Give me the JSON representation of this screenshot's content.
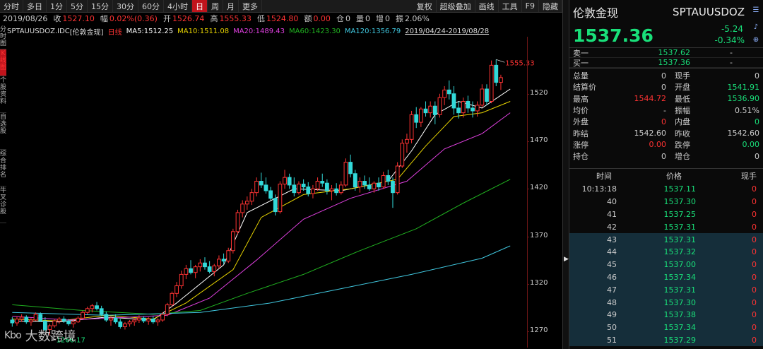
{
  "toolbar": {
    "periods": [
      "分时",
      "多日",
      "1分",
      "5分",
      "15分",
      "30分",
      "60分",
      "4小时",
      "日",
      "周",
      "月",
      "更多"
    ],
    "active_period": "日",
    "tools": [
      "复权",
      "超级叠加",
      "画线",
      "工具",
      "F9",
      "隐藏"
    ]
  },
  "info": {
    "date": "2019/08/26",
    "close_label": "收",
    "close_value": "1527.10",
    "amp_label": "幅",
    "amp_value": "0.02%(0.36)",
    "open_label": "开",
    "open_value": "1526.74",
    "high_label": "高",
    "high_value": "1555.33",
    "low_label": "低",
    "low_value": "1524.80",
    "amount_label": "额",
    "amount_value": "0.00",
    "position_label": "仓",
    "position_value": "0",
    "volume_label": "量",
    "volume_value": "0",
    "dpos_label": "增",
    "dpos_value": "0",
    "swing_label": "振",
    "swing_value": "2.06%"
  },
  "side_tabs": [
    {
      "text": "分时图",
      "red": false
    },
    {
      "text": "K线图",
      "red": true
    },
    {
      "text": "个股资料",
      "red": false
    },
    {
      "text": "自选股",
      "red": false
    },
    {
      "text": "综合排名",
      "red": false
    },
    {
      "text": "牛叉诊股",
      "red": false
    }
  ],
  "legend": {
    "symbol": "SPTAUUSDOZ.IDC",
    "name": "[伦敦金现]",
    "period": "日线",
    "ma5": "MA5:1512.25",
    "ma10": "MA10:1511.08",
    "ma20": "MA20:1489.43",
    "ma60": "MA60:1423.30",
    "ma120": "MA120:1356.79",
    "range": "2019/04/24-2019/08/28"
  },
  "colors": {
    "up": "#ff3333",
    "down": "#32d9d9",
    "ma5": "#ffffff",
    "ma10": "#e8d400",
    "ma20": "#e040e0",
    "ma60": "#20b020",
    "ma120": "#40c8e0",
    "price": "#19e07a"
  },
  "chart_data": {
    "type": "candlestick",
    "y_ticks": [
      1270,
      1320,
      1370,
      1420,
      1470,
      1520
    ],
    "ylim": [
      1253,
      1580
    ],
    "annotations": {
      "max_label": "1555.33",
      "min_label": "1266.17"
    },
    "candles": [
      [
        1282,
        1285,
        1275,
        1279
      ],
      [
        1279,
        1286,
        1276,
        1283
      ],
      [
        1283,
        1288,
        1280,
        1285
      ],
      [
        1285,
        1287,
        1278,
        1280
      ],
      [
        1280,
        1284,
        1276,
        1282
      ],
      [
        1282,
        1290,
        1281,
        1288
      ],
      [
        1288,
        1290,
        1280,
        1281
      ],
      [
        1281,
        1285,
        1270,
        1272
      ],
      [
        1272,
        1278,
        1266,
        1276
      ],
      [
        1276,
        1283,
        1274,
        1281
      ],
      [
        1281,
        1285,
        1278,
        1283
      ],
      [
        1283,
        1286,
        1279,
        1281
      ],
      [
        1281,
        1283,
        1276,
        1278
      ],
      [
        1278,
        1282,
        1274,
        1280
      ],
      [
        1280,
        1286,
        1279,
        1284
      ],
      [
        1284,
        1292,
        1283,
        1290
      ],
      [
        1290,
        1296,
        1288,
        1294
      ],
      [
        1294,
        1299,
        1290,
        1297
      ],
      [
        1297,
        1301,
        1292,
        1294
      ],
      [
        1294,
        1297,
        1286,
        1288
      ],
      [
        1288,
        1291,
        1280,
        1282
      ],
      [
        1282,
        1286,
        1276,
        1284
      ],
      [
        1284,
        1288,
        1278,
        1280
      ],
      [
        1280,
        1283,
        1273,
        1275
      ],
      [
        1275,
        1280,
        1272,
        1278
      ],
      [
        1278,
        1282,
        1275,
        1280
      ],
      [
        1280,
        1284,
        1276,
        1282
      ],
      [
        1282,
        1287,
        1279,
        1284
      ],
      [
        1284,
        1286,
        1279,
        1281
      ],
      [
        1281,
        1285,
        1277,
        1283
      ],
      [
        1283,
        1286,
        1278,
        1280
      ],
      [
        1280,
        1284,
        1276,
        1282
      ],
      [
        1282,
        1290,
        1280,
        1288
      ],
      [
        1288,
        1300,
        1286,
        1298
      ],
      [
        1298,
        1312,
        1296,
        1310
      ],
      [
        1310,
        1322,
        1306,
        1318
      ],
      [
        1318,
        1334,
        1315,
        1330
      ],
      [
        1330,
        1340,
        1325,
        1336
      ],
      [
        1336,
        1345,
        1330,
        1332
      ],
      [
        1332,
        1340,
        1326,
        1338
      ],
      [
        1338,
        1346,
        1333,
        1342
      ],
      [
        1342,
        1348,
        1335,
        1338
      ],
      [
        1338,
        1344,
        1331,
        1333
      ],
      [
        1333,
        1341,
        1328,
        1339
      ],
      [
        1339,
        1350,
        1336,
        1346
      ],
      [
        1346,
        1352,
        1341,
        1344
      ],
      [
        1344,
        1358,
        1342,
        1355
      ],
      [
        1355,
        1378,
        1352,
        1375
      ],
      [
        1375,
        1398,
        1372,
        1395
      ],
      [
        1395,
        1408,
        1390,
        1404
      ],
      [
        1404,
        1412,
        1398,
        1407
      ],
      [
        1407,
        1420,
        1403,
        1416
      ],
      [
        1416,
        1432,
        1412,
        1428
      ],
      [
        1428,
        1437,
        1421,
        1424
      ],
      [
        1424,
        1432,
        1415,
        1418
      ],
      [
        1418,
        1422,
        1408,
        1410
      ],
      [
        1410,
        1414,
        1392,
        1396
      ],
      [
        1396,
        1428,
        1394,
        1425
      ],
      [
        1425,
        1440,
        1420,
        1432
      ],
      [
        1432,
        1436,
        1420,
        1424
      ],
      [
        1424,
        1432,
        1412,
        1416
      ],
      [
        1416,
        1428,
        1414,
        1425
      ],
      [
        1425,
        1430,
        1418,
        1422
      ],
      [
        1422,
        1427,
        1412,
        1415
      ],
      [
        1415,
        1424,
        1410,
        1420
      ],
      [
        1420,
        1432,
        1418,
        1428
      ],
      [
        1428,
        1436,
        1422,
        1426
      ],
      [
        1426,
        1430,
        1414,
        1418
      ],
      [
        1418,
        1424,
        1408,
        1420
      ],
      [
        1420,
        1426,
        1413,
        1416
      ],
      [
        1416,
        1428,
        1414,
        1424
      ],
      [
        1424,
        1452,
        1422,
        1448
      ],
      [
        1448,
        1456,
        1432,
        1436
      ],
      [
        1436,
        1440,
        1418,
        1422
      ],
      [
        1422,
        1432,
        1416,
        1428
      ],
      [
        1428,
        1434,
        1420,
        1424
      ],
      [
        1424,
        1432,
        1418,
        1420
      ],
      [
        1420,
        1428,
        1416,
        1426
      ],
      [
        1426,
        1432,
        1418,
        1422
      ],
      [
        1422,
        1438,
        1420,
        1434
      ],
      [
        1434,
        1440,
        1424,
        1428
      ],
      [
        1428,
        1432,
        1400,
        1416
      ],
      [
        1416,
        1448,
        1414,
        1444
      ],
      [
        1444,
        1472,
        1442,
        1468
      ],
      [
        1468,
        1478,
        1458,
        1472
      ],
      [
        1472,
        1502,
        1468,
        1498
      ],
      [
        1498,
        1506,
        1484,
        1490
      ],
      [
        1490,
        1506,
        1485,
        1504
      ],
      [
        1504,
        1512,
        1496,
        1500
      ],
      [
        1500,
        1512,
        1495,
        1507
      ],
      [
        1507,
        1512,
        1488,
        1498
      ],
      [
        1498,
        1520,
        1495,
        1516
      ],
      [
        1516,
        1528,
        1508,
        1524
      ],
      [
        1524,
        1534,
        1514,
        1520
      ],
      [
        1520,
        1528,
        1498,
        1505
      ],
      [
        1505,
        1512,
        1494,
        1500
      ],
      [
        1500,
        1516,
        1495,
        1512
      ],
      [
        1512,
        1518,
        1500,
        1505
      ],
      [
        1505,
        1512,
        1495,
        1502
      ],
      [
        1502,
        1512,
        1496,
        1508
      ],
      [
        1508,
        1530,
        1506,
        1525
      ],
      [
        1525,
        1530,
        1508,
        1512
      ],
      [
        1512,
        1555,
        1510,
        1550
      ],
      [
        1550,
        1556,
        1528,
        1532
      ],
      [
        1532,
        1540,
        1524,
        1537
      ]
    ],
    "ma_series": [
      {
        "name": "MA5",
        "values": [
          [
            0,
            1281
          ],
          [
            10,
            1280
          ],
          [
            20,
            1285
          ],
          [
            30,
            1282
          ],
          [
            35,
            1300
          ],
          [
            45,
            1340
          ],
          [
            50,
            1395
          ],
          [
            60,
            1420
          ],
          [
            70,
            1418
          ],
          [
            80,
            1428
          ],
          [
            85,
            1460
          ],
          [
            90,
            1498
          ],
          [
            95,
            1512
          ],
          [
            100,
            1505
          ],
          [
            106,
            1525
          ]
        ]
      },
      {
        "name": "MA10",
        "values": [
          [
            0,
            1283
          ],
          [
            10,
            1281
          ],
          [
            20,
            1287
          ],
          [
            30,
            1283
          ],
          [
            37,
            1300
          ],
          [
            47,
            1335
          ],
          [
            53,
            1390
          ],
          [
            62,
            1414
          ],
          [
            72,
            1420
          ],
          [
            82,
            1430
          ],
          [
            88,
            1465
          ],
          [
            94,
            1496
          ],
          [
            100,
            1500
          ],
          [
            106,
            1512
          ]
        ]
      },
      {
        "name": "MA20",
        "values": [
          [
            0,
            1286
          ],
          [
            12,
            1282
          ],
          [
            25,
            1285
          ],
          [
            33,
            1287
          ],
          [
            42,
            1305
          ],
          [
            52,
            1345
          ],
          [
            62,
            1388
          ],
          [
            72,
            1410
          ],
          [
            84,
            1428
          ],
          [
            92,
            1462
          ],
          [
            100,
            1478
          ],
          [
            106,
            1500
          ]
        ]
      },
      {
        "name": "MA60",
        "values": [
          [
            0,
            1298
          ],
          [
            15,
            1292
          ],
          [
            30,
            1288
          ],
          [
            40,
            1292
          ],
          [
            50,
            1310
          ],
          [
            62,
            1330
          ],
          [
            74,
            1355
          ],
          [
            86,
            1378
          ],
          [
            96,
            1405
          ],
          [
            106,
            1430
          ]
        ]
      },
      {
        "name": "MA120",
        "values": [
          [
            0,
            1290
          ],
          [
            20,
            1287
          ],
          [
            40,
            1290
          ],
          [
            55,
            1300
          ],
          [
            70,
            1315
          ],
          [
            85,
            1330
          ],
          [
            100,
            1347
          ],
          [
            106,
            1360
          ]
        ]
      }
    ]
  },
  "right": {
    "name": "伦敦金现",
    "code": "SPTAUUSDOZ",
    "price": "1537.36",
    "change": "-5.24",
    "change_pct": "-0.34%",
    "orderbook": [
      {
        "label": "卖一",
        "price": "1537.62",
        "vol": "-"
      },
      {
        "label": "买一",
        "price": "1537.36",
        "vol": "-"
      }
    ],
    "stats": [
      {
        "k1": "总量",
        "v1": "0",
        "c1": "",
        "k2": "现手",
        "v2": "0",
        "c2": ""
      },
      {
        "k1": "结算价",
        "v1": "0",
        "c1": "",
        "k2": "开盘",
        "v2": "1541.91",
        "c2": "grn"
      },
      {
        "k1": "最高",
        "v1": "1544.72",
        "c1": "red",
        "k2": "最低",
        "v2": "1536.90",
        "c2": "grn"
      },
      {
        "k1": "均价",
        "v1": "-",
        "c1": "",
        "k2": "振幅",
        "v2": "0.51%",
        "c2": ""
      },
      {
        "k1": "外盘",
        "v1": "0",
        "c1": "red",
        "k2": "内盘",
        "v2": "0",
        "c2": "grn"
      },
      {
        "k1": "昨结",
        "v1": "1542.60",
        "c1": "",
        "k2": "昨收",
        "v2": "1542.60",
        "c2": ""
      },
      {
        "k1": "涨停",
        "v1": "0.00",
        "c1": "red",
        "k2": "跌停",
        "v2": "0.00",
        "c2": "grn"
      },
      {
        "k1": "持仓",
        "v1": "0",
        "c1": "",
        "k2": "增仓",
        "v2": "0",
        "c2": ""
      }
    ],
    "tick_header": {
      "time": "时间",
      "price": "价格",
      "vol": "现手"
    },
    "ticks": [
      {
        "t": "10:13:18",
        "p": "1537.11",
        "q": "0",
        "hl": false
      },
      {
        "t": "40",
        "p": "1537.30",
        "q": "0",
        "hl": false
      },
      {
        "t": "41",
        "p": "1537.25",
        "q": "0",
        "hl": false
      },
      {
        "t": "42",
        "p": "1537.31",
        "q": "0",
        "hl": false
      },
      {
        "t": "43",
        "p": "1537.31",
        "q": "0",
        "hl": true
      },
      {
        "t": "44",
        "p": "1537.32",
        "q": "0",
        "hl": true
      },
      {
        "t": "45",
        "p": "1537.00",
        "q": "0",
        "hl": true
      },
      {
        "t": "46",
        "p": "1537.34",
        "q": "0",
        "hl": true
      },
      {
        "t": "47",
        "p": "1537.31",
        "q": "0",
        "hl": true
      },
      {
        "t": "48",
        "p": "1537.30",
        "q": "0",
        "hl": true
      },
      {
        "t": "49",
        "p": "1537.38",
        "q": "0",
        "hl": true
      },
      {
        "t": "50",
        "p": "1537.34",
        "q": "0",
        "hl": true
      },
      {
        "t": "51",
        "p": "1537.29",
        "q": "0",
        "hl": true
      }
    ]
  },
  "watermark": {
    "logo": "Kbo",
    "text": "大数跨境"
  }
}
